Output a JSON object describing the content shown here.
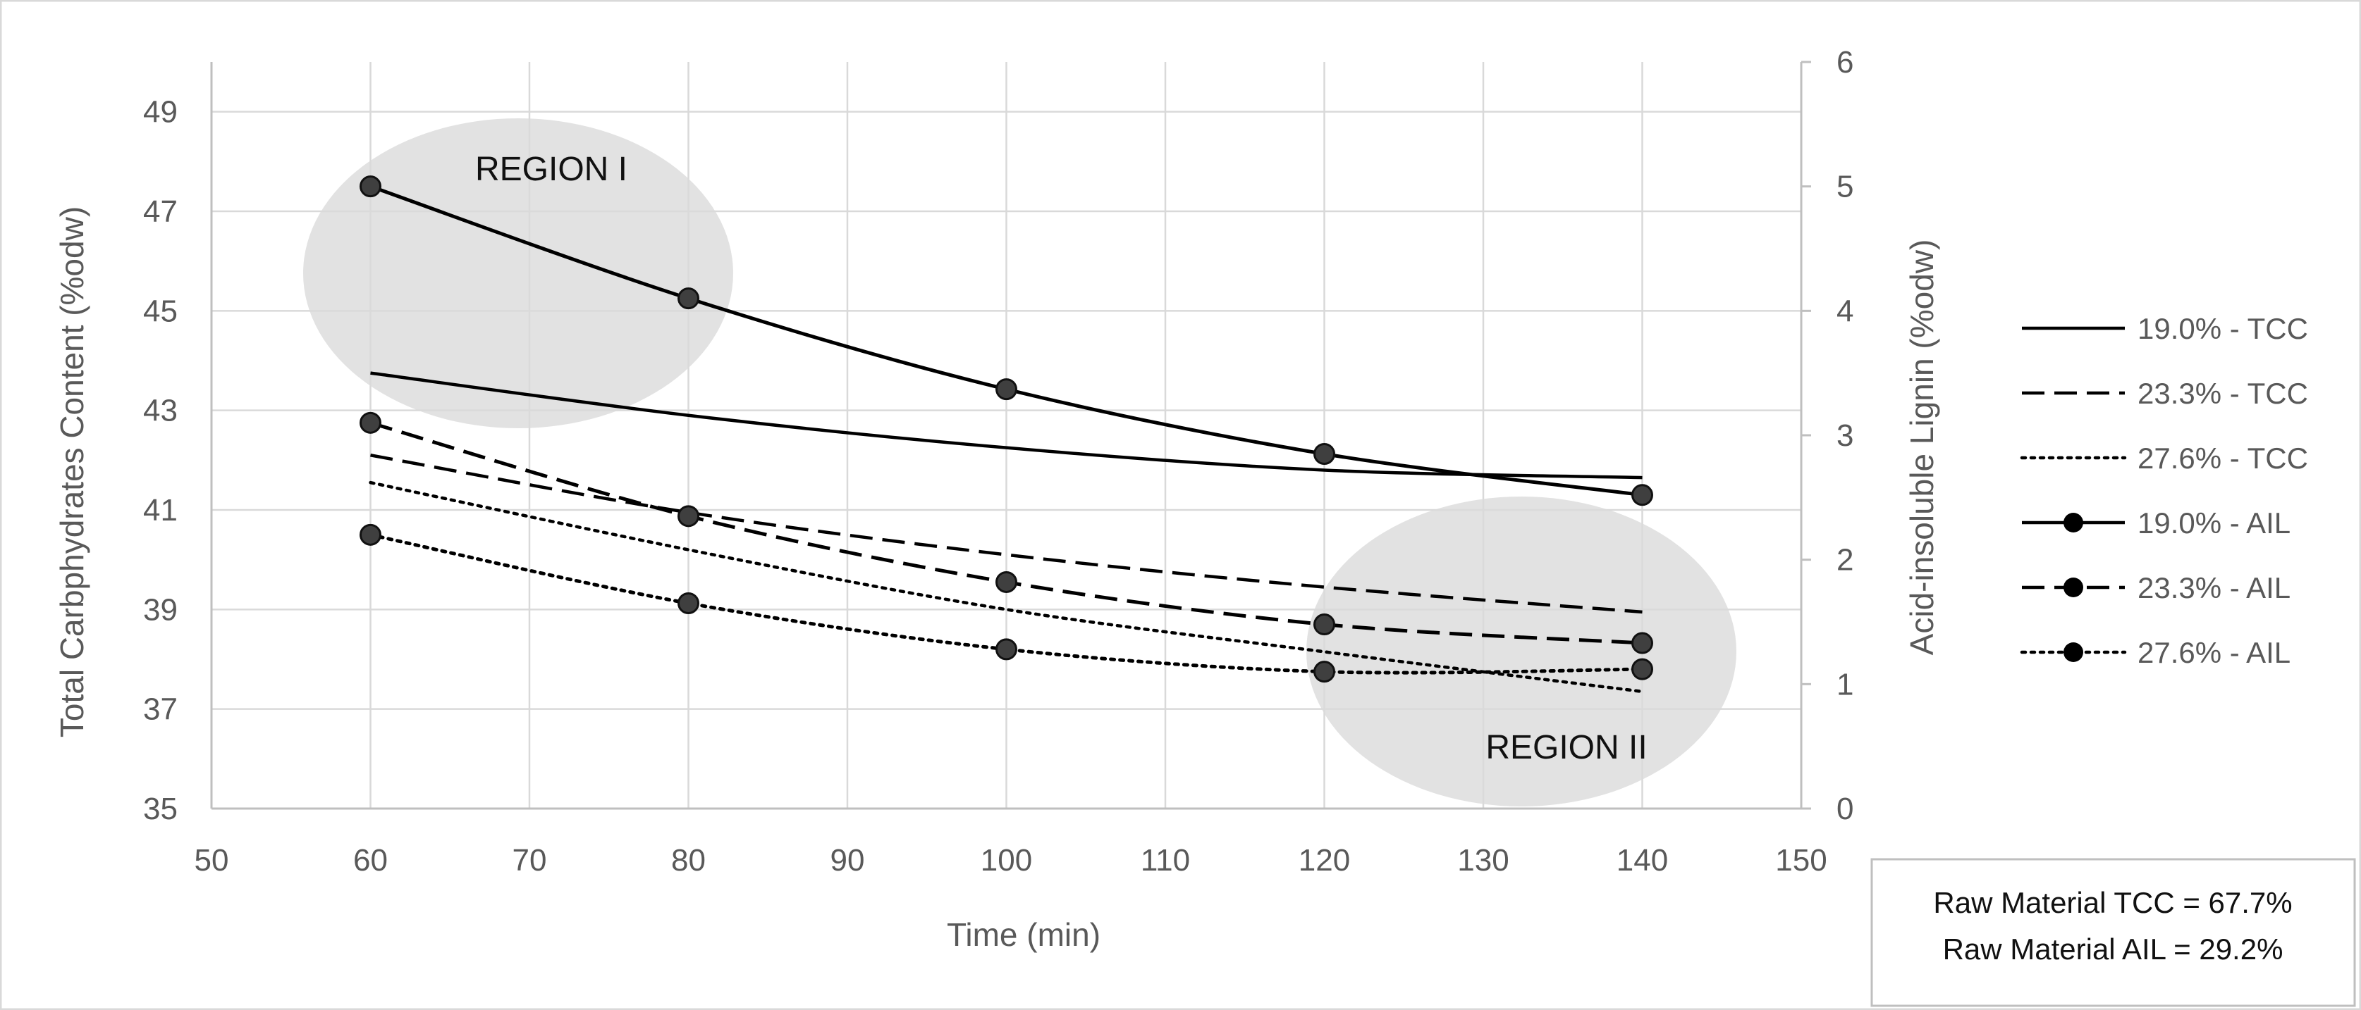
{
  "chart_data": {
    "type": "line",
    "x": [
      60,
      80,
      100,
      120,
      140
    ],
    "xlabel": "Time (min)",
    "ylabel": "Total Carbphydrates Content (%odw)",
    "y2label": "Acid-insoluble Lignin (%odw)",
    "xlim": [
      50,
      150
    ],
    "ylim": [
      35,
      50
    ],
    "y2lim": [
      0,
      6
    ],
    "xticks": [
      "50",
      "60",
      "70",
      "80",
      "90",
      "100",
      "110",
      "120",
      "130",
      "140",
      "150"
    ],
    "yticks": [
      "35",
      "37",
      "39",
      "41",
      "43",
      "45",
      "47",
      "49"
    ],
    "y2ticks": [
      "0",
      "1",
      "2",
      "3",
      "4",
      "5",
      "6"
    ],
    "grid": true,
    "legend_position": "right",
    "series": [
      {
        "name": "19.0% - TCC",
        "axis": "left",
        "dash": "solid",
        "markers": false,
        "values": [
          43.75,
          42.9,
          42.25,
          41.8,
          41.65
        ]
      },
      {
        "name": "23.3% - TCC",
        "axis": "left",
        "dash": "dashed",
        "markers": false,
        "values": [
          42.1,
          40.95,
          40.1,
          39.45,
          38.95
        ]
      },
      {
        "name": "27.6% - TCC",
        "axis": "left",
        "dash": "dotted",
        "markers": false,
        "values": [
          41.55,
          40.2,
          39.0,
          38.15,
          37.35
        ]
      },
      {
        "name": "19.0% - AIL",
        "axis": "right",
        "dash": "solid",
        "markers": true,
        "values": [
          5.0,
          4.1,
          3.37,
          2.85,
          2.52
        ]
      },
      {
        "name": "23.3% - AIL",
        "axis": "right",
        "dash": "dashed",
        "markers": true,
        "values": [
          3.1,
          2.35,
          1.82,
          1.48,
          1.33
        ]
      },
      {
        "name": "27.6% - AIL",
        "axis": "right",
        "dash": "dotted",
        "markers": true,
        "values": [
          2.2,
          1.65,
          1.28,
          1.1,
          1.12
        ]
      }
    ],
    "annotations": [
      "REGION I",
      "REGION II"
    ],
    "note_lines": [
      "Raw Material TCC = 67.7%",
      "Raw Material AIL = 29.2%"
    ]
  }
}
